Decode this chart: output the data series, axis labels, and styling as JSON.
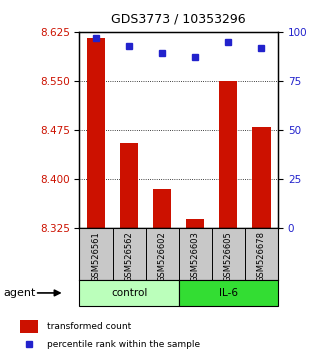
{
  "title": "GDS3773 / 10353296",
  "samples": [
    "GSM526561",
    "GSM526562",
    "GSM526602",
    "GSM526603",
    "GSM526605",
    "GSM526678"
  ],
  "bar_values": [
    8.615,
    8.455,
    8.385,
    8.34,
    8.55,
    8.48
  ],
  "percentile_values": [
    97,
    93,
    89,
    87,
    95,
    92
  ],
  "ylim_left": [
    8.325,
    8.625
  ],
  "ylim_right": [
    0,
    100
  ],
  "yticks_left": [
    8.325,
    8.4,
    8.475,
    8.55,
    8.625
  ],
  "yticks_right": [
    0,
    25,
    50,
    75,
    100
  ],
  "bar_color": "#cc1100",
  "dot_color": "#2222cc",
  "control_color": "#bbffbb",
  "il6_color": "#33dd33",
  "label_color_left": "#cc1100",
  "label_color_right": "#2222cc",
  "legend_bar": "transformed count",
  "legend_dot": "percentile rank within the sample",
  "figsize": [
    3.31,
    3.54
  ],
  "dpi": 100
}
